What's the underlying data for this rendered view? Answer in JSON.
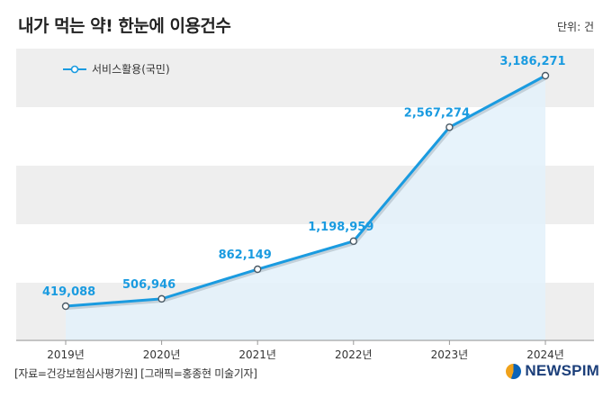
{
  "title": "내가 먹는 약! 한눈에 이용건수",
  "unit_label": "단위: 건",
  "source": "[자료=건강보험심사평가원] [그래픽=홍종현 미술기자]",
  "logo": "NEWSPIM",
  "colors": {
    "line": "#1a9be0",
    "area": "#e3f1fa",
    "band": "#eeeeee",
    "label": "#1a9be0"
  },
  "chart_data": {
    "type": "line",
    "categories": [
      "2019년",
      "2020년",
      "2021년",
      "2022년",
      "2023년",
      "2024년"
    ],
    "series": [
      {
        "name": "서비스활용(국민)",
        "values": [
          419088,
          506946,
          862149,
          1198959,
          2567274,
          3186271
        ],
        "labels": [
          "419,088",
          "506,946",
          "862,149",
          "1,198,959",
          "2,567,274",
          "3,186,271"
        ]
      }
    ],
    "legend": "top-left",
    "area_fill": true
  }
}
